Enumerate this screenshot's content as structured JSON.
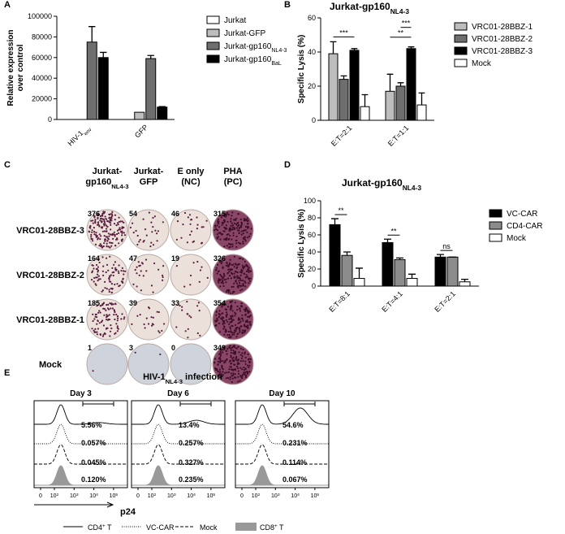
{
  "chart_data": [
    {
      "type": "bar",
      "label": "A",
      "ylabel": [
        "Relative expression",
        "over control"
      ],
      "categories": [
        [
          "HIV-1",
          {
            "sub": "env"
          }
        ],
        "GFP"
      ],
      "ylim": [
        0,
        100000
      ],
      "yticks": [
        0,
        20000,
        40000,
        60000,
        80000,
        100000
      ],
      "series": [
        {
          "name": "Jurkat",
          "color": "#ffffff",
          "values": [
            0,
            0
          ]
        },
        {
          "name": "Jurkat-GFP",
          "color": "#bdbdbd",
          "values": [
            0,
            7000
          ]
        },
        {
          "name": [
            "Jurkat-gp160",
            {
              "sub": "NL4-3"
            }
          ],
          "color": "#6e6e6e",
          "values": [
            75000,
            59000
          ],
          "errors": [
            15000,
            3000
          ]
        },
        {
          "name": [
            "Jurkat-gp160",
            {
              "sub": "BaL"
            }
          ],
          "color": "#000000",
          "values": [
            60000,
            12000
          ],
          "errors": [
            5000,
            500
          ]
        }
      ]
    },
    {
      "type": "bar",
      "label": "B",
      "title": [
        "Jurkat-gp160",
        {
          "sub": "NL4-3"
        }
      ],
      "ylabel": "Specific Lysis (%)",
      "categories": [
        "E:T=2:1",
        "E:T=1:1"
      ],
      "ylim": [
        0,
        60
      ],
      "yticks": [
        0,
        20,
        40,
        60
      ],
      "series": [
        {
          "name": "VRC01-28BBZ-1",
          "color": "#bdbdbd",
          "values": [
            39,
            17
          ],
          "errors": [
            7,
            10
          ]
        },
        {
          "name": "VRC01-28BBZ-2",
          "color": "#6e6e6e",
          "values": [
            24,
            20
          ],
          "errors": [
            2,
            2
          ]
        },
        {
          "name": "VRC01-28BBZ-3",
          "color": "#000000",
          "values": [
            41,
            42
          ],
          "errors": [
            1,
            1
          ]
        },
        {
          "name": "Mock",
          "color": "#ffffff",
          "values": [
            8,
            9
          ],
          "errors": [
            7,
            7
          ]
        }
      ],
      "annotations": [
        "***",
        "**",
        "***"
      ]
    },
    {
      "type": "image-grid",
      "label": "C",
      "columns": [
        [
          "Jurkat-",
          [
            "gp160",
            {
              "sub": "NL4-3"
            }
          ]
        ],
        [
          "Jurkat-",
          "GFP"
        ],
        [
          "E only",
          "(NC)"
        ],
        [
          "PHA",
          "(PC)"
        ]
      ],
      "rows": [
        "VRC01-28BBZ-3",
        "VRC01-28BBZ-2",
        "VRC01-28BBZ-1",
        "Mock"
      ],
      "counts": [
        [
          376,
          54,
          46,
          315
        ],
        [
          164,
          47,
          19,
          326
        ],
        [
          185,
          39,
          33,
          354
        ],
        [
          1,
          3,
          0,
          349
        ]
      ]
    },
    {
      "type": "bar",
      "label": "D",
      "title": [
        "Jurkat-gp160",
        {
          "sub": "NL4-3"
        }
      ],
      "ylabel": "Specific Lysis (%)",
      "categories": [
        "E:T=8:1",
        "E:T=4:1",
        "E:T=2:1"
      ],
      "ylim": [
        0,
        100
      ],
      "yticks": [
        0,
        20,
        40,
        60,
        80,
        100
      ],
      "series": [
        {
          "name": "VC-CAR",
          "color": "#000000",
          "values": [
            72,
            51,
            34
          ],
          "errors": [
            7,
            4,
            3
          ]
        },
        {
          "name": "CD4-CAR",
          "color": "#8c8c8c",
          "values": [
            36,
            31,
            34
          ],
          "errors": [
            4,
            2,
            0
          ]
        },
        {
          "name": "Mock",
          "color": "#ffffff",
          "values": [
            9,
            9,
            5
          ],
          "errors": [
            12,
            5,
            3
          ]
        }
      ],
      "annotations": [
        "**",
        "**",
        "ns"
      ]
    },
    {
      "type": "flow-histogram",
      "label": "E",
      "title": [
        "HIV-1",
        {
          "sub": "NL4-3"
        },
        " infection"
      ],
      "xlabel": "p24",
      "xticks": [
        0,
        {
          "value": 100,
          "label": [
            "10",
            {
              "sup": "2"
            }
          ]
        },
        {
          "value": 1000,
          "label": [
            "10",
            {
              "sup": "3"
            }
          ]
        },
        {
          "value": 10000,
          "label": [
            "10",
            {
              "sup": "4"
            }
          ]
        },
        {
          "value": 100000,
          "label": [
            "10",
            {
              "sup": "5"
            }
          ]
        }
      ],
      "series": [
        {
          "name": [
            "CD4",
            {
              "sup": "+"
            },
            " T"
          ],
          "style": "solid",
          "color": "#000000"
        },
        {
          "name": "VC-CAR",
          "style": "dotted",
          "color": "#000000"
        },
        {
          "name": "Mock",
          "style": "dashed",
          "color": "#000000"
        },
        {
          "name": [
            "CD8",
            {
              "sup": "+"
            },
            " T"
          ],
          "style": "filled",
          "color": "#999999"
        }
      ],
      "panels": [
        {
          "title": "Day 3",
          "values": [
            5.56,
            0.057,
            0.045,
            0.12
          ],
          "value_labels": [
            "5.56%",
            "0.057%",
            "0.045%",
            "0.120%"
          ]
        },
        {
          "title": "Day 6",
          "values": [
            13.4,
            0.257,
            0.327,
            0.235
          ],
          "value_labels": [
            "13.4%",
            "0.257%",
            "0.327%",
            "0.235%"
          ]
        },
        {
          "title": "Day 10",
          "values": [
            54.6,
            0.231,
            0.114,
            0.067
          ],
          "value_labels": [
            "54.6%",
            "0.231%",
            "0.114%",
            "0.067%"
          ]
        }
      ]
    }
  ]
}
